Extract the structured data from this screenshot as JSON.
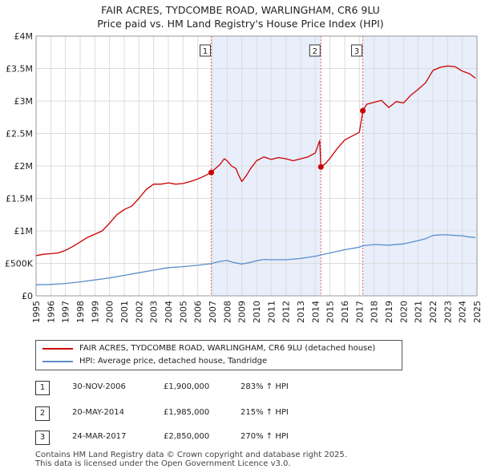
{
  "colors": {
    "price_line": "#cc0000",
    "hpi_line": "#5b8ec9",
    "shade": "#e8eefa",
    "grid": "#dcdcdc",
    "vline": "#e06666"
  },
  "legend": {
    "price_label": "FAIR ACRES, TYDCOMBE ROAD, WARLINGHAM, CR6 9LU (detached house)",
    "hpi_label": "HPI: Average price, detached house, Tandridge"
  },
  "transactions": [
    {
      "num": "1",
      "date": "30-NOV-2006",
      "price": "£1,900,000",
      "hpi": "283% ↑ HPI"
    },
    {
      "num": "2",
      "date": "20-MAY-2014",
      "price": "£1,985,000",
      "hpi": "215% ↑ HPI"
    },
    {
      "num": "3",
      "date": "24-MAR-2017",
      "price": "£2,850,000",
      "hpi": "270% ↑ HPI"
    }
  ],
  "footer": {
    "line1": "Contains HM Land Registry data © Crown copyright and database right 2025.",
    "line2": "This data is licensed under the Open Government Licence v3.0."
  },
  "chart_data": {
    "type": "line",
    "title": "FAIR ACRES, TYDCOMBE ROAD, WARLINGHAM, CR6 9LU",
    "subtitle": "Price paid vs. HM Land Registry's House Price Index (HPI)",
    "xlabel": "",
    "ylabel": "",
    "xlim": [
      1995,
      2025
    ],
    "ylim": [
      0,
      4000000
    ],
    "y_ticks": [
      0,
      500000,
      1000000,
      1500000,
      2000000,
      2500000,
      3000000,
      3500000,
      4000000
    ],
    "y_tick_labels": [
      "£0",
      "£500K",
      "£1M",
      "£1.5M",
      "£2M",
      "£2.5M",
      "£3M",
      "£3.5M",
      "£4M"
    ],
    "x_ticks": [
      1995,
      1996,
      1997,
      1998,
      1999,
      2000,
      2001,
      2002,
      2003,
      2004,
      2005,
      2006,
      2007,
      2008,
      2009,
      2010,
      2011,
      2012,
      2013,
      2014,
      2015,
      2016,
      2017,
      2018,
      2019,
      2020,
      2021,
      2022,
      2023,
      2024,
      2025
    ],
    "x_tick_labels": [
      "1995",
      "1996",
      "1997",
      "1998",
      "1999",
      "2000",
      "2001",
      "2002",
      "2003",
      "2004",
      "2005",
      "2006",
      "2007",
      "2008",
      "2009",
      "2010",
      "2011",
      "2012",
      "2013",
      "2014",
      "2015",
      "2016",
      "2017",
      "2018",
      "2019",
      "2020",
      "2021",
      "2022",
      "2023",
      "2024",
      "2025"
    ],
    "grid": true,
    "shaded_ranges": [
      [
        2006.92,
        2014.38
      ],
      [
        2017.23,
        2025.0
      ]
    ],
    "markers": [
      {
        "label": "1",
        "x": 2006.92,
        "y": 1900000
      },
      {
        "label": "2",
        "x": 2014.38,
        "y": 1985000
      },
      {
        "label": "3",
        "x": 2017.23,
        "y": 2850000
      }
    ],
    "series": [
      {
        "name": "FAIR ACRES, TYDCOMBE ROAD, WARLINGHAM, CR6 9LU (detached house)",
        "x": [
          1995.0,
          1995.5,
          1996.0,
          1996.5,
          1997.0,
          1997.5,
          1998.0,
          1998.5,
          1999.0,
          1999.5,
          2000.0,
          2000.5,
          2001.0,
          2001.5,
          2002.0,
          2002.5,
          2003.0,
          2003.5,
          2004.0,
          2004.5,
          2005.0,
          2005.5,
          2006.0,
          2006.5,
          2006.92,
          2007.2,
          2007.5,
          2007.8,
          2008.0,
          2008.3,
          2008.6,
          2008.8,
          2009.0,
          2009.3,
          2009.6,
          2010.0,
          2010.5,
          2011.0,
          2011.5,
          2012.0,
          2012.5,
          2013.0,
          2013.5,
          2014.0,
          2014.3,
          2014.38,
          2014.7,
          2015.0,
          2015.5,
          2016.0,
          2016.5,
          2017.0,
          2017.23,
          2017.5,
          2018.0,
          2018.5,
          2019.0,
          2019.5,
          2020.0,
          2020.5,
          2021.0,
          2021.5,
          2022.0,
          2022.5,
          2023.0,
          2023.5,
          2024.0,
          2024.5,
          2024.9
        ],
        "values": [
          620000,
          640000,
          650000,
          660000,
          700000,
          760000,
          830000,
          900000,
          950000,
          1000000,
          1120000,
          1250000,
          1330000,
          1380000,
          1500000,
          1640000,
          1720000,
          1720000,
          1740000,
          1720000,
          1730000,
          1760000,
          1800000,
          1850000,
          1900000,
          1960000,
          2020000,
          2110000,
          2080000,
          2000000,
          1960000,
          1850000,
          1760000,
          1850000,
          1960000,
          2080000,
          2140000,
          2100000,
          2130000,
          2110000,
          2080000,
          2110000,
          2140000,
          2200000,
          2390000,
          1985000,
          2040000,
          2120000,
          2270000,
          2400000,
          2460000,
          2520000,
          2850000,
          2950000,
          2980000,
          3010000,
          2900000,
          2990000,
          2970000,
          3090000,
          3180000,
          3280000,
          3470000,
          3520000,
          3540000,
          3530000,
          3460000,
          3420000,
          3350000
        ]
      },
      {
        "name": "HPI: Average price, detached house, Tandridge",
        "x": [
          1995.0,
          1996.0,
          1997.0,
          1998.0,
          1999.0,
          2000.0,
          2001.0,
          2002.0,
          2003.0,
          2004.0,
          2005.0,
          2006.0,
          2006.92,
          2007.5,
          2008.0,
          2008.5,
          2009.0,
          2009.5,
          2010.0,
          2010.5,
          2011.0,
          2012.0,
          2013.0,
          2014.0,
          2014.38,
          2015.0,
          2016.0,
          2017.0,
          2017.23,
          2018.0,
          2019.0,
          2020.0,
          2021.0,
          2021.5,
          2022.0,
          2022.5,
          2023.0,
          2023.5,
          2024.0,
          2024.5,
          2024.9
        ],
        "values": [
          170000,
          175000,
          190000,
          215000,
          245000,
          275000,
          315000,
          355000,
          395000,
          435000,
          450000,
          470000,
          496000,
          530000,
          545000,
          510000,
          490000,
          510000,
          540000,
          560000,
          555000,
          555000,
          575000,
          610000,
          630000,
          660000,
          710000,
          750000,
          770000,
          790000,
          780000,
          800000,
          850000,
          880000,
          930000,
          940000,
          940000,
          930000,
          925000,
          905000,
          900000
        ]
      }
    ]
  }
}
